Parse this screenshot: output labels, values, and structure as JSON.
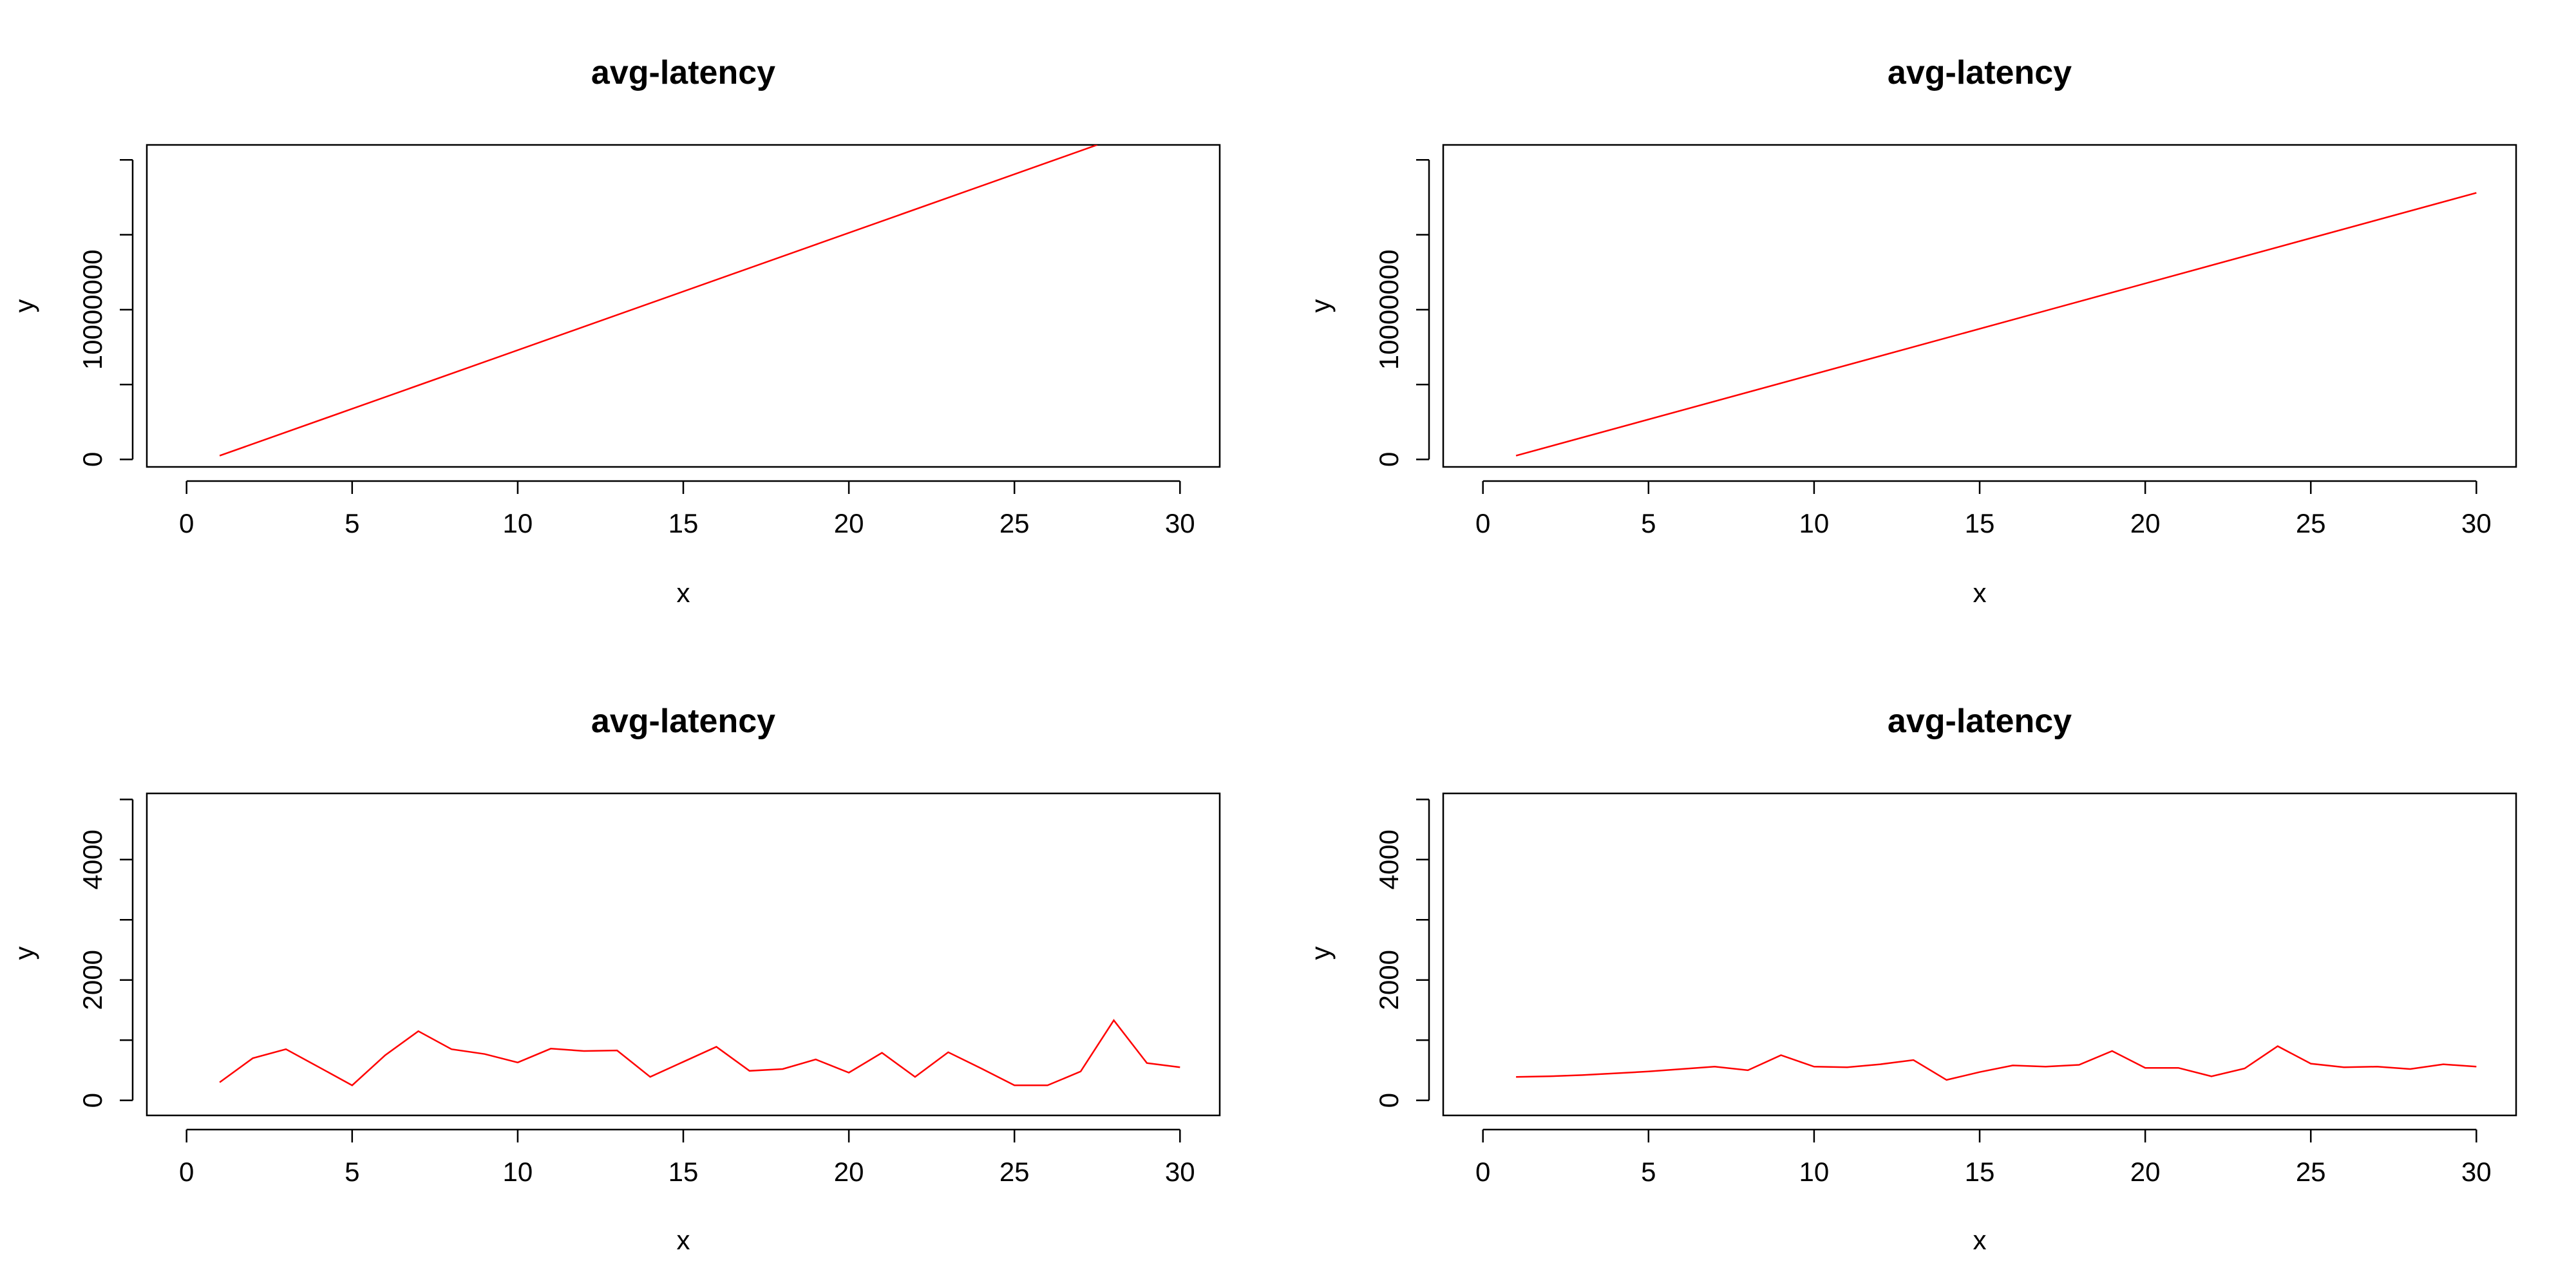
{
  "chart_data": [
    {
      "type": "line",
      "title": "avg-latency",
      "xlabel": "x",
      "ylabel": "y",
      "xlim": [
        0,
        30
      ],
      "ylim": [
        -500000,
        21000000
      ],
      "x_ticks": [
        0,
        5,
        10,
        15,
        20,
        25,
        30
      ],
      "y_ticks": [
        0,
        5000000,
        10000000,
        15000000,
        20000000
      ],
      "y_tick_labels": [
        "0",
        "",
        "10000000",
        "",
        ""
      ],
      "grid": false,
      "line_color": "#ff0000",
      "series": [
        {
          "x": [
            1,
            27.5
          ],
          "y": [
            250000,
            21000000
          ]
        }
      ]
    },
    {
      "type": "line",
      "title": "avg-latency",
      "xlabel": "x",
      "ylabel": "y",
      "xlim": [
        0,
        30
      ],
      "ylim": [
        -500000,
        21000000
      ],
      "x_ticks": [
        0,
        5,
        10,
        15,
        20,
        25,
        30
      ],
      "y_ticks": [
        0,
        5000000,
        10000000,
        15000000,
        20000000
      ],
      "y_tick_labels": [
        "0",
        "",
        "10000000",
        "",
        ""
      ],
      "grid": false,
      "line_color": "#ff0000",
      "series": [
        {
          "x": [
            1,
            30
          ],
          "y": [
            250000,
            17800000
          ]
        }
      ]
    },
    {
      "type": "line",
      "title": "avg-latency",
      "xlabel": "x",
      "ylabel": "y",
      "xlim": [
        0,
        30
      ],
      "ylim": [
        -250,
        5100
      ],
      "x_ticks": [
        0,
        5,
        10,
        15,
        20,
        25,
        30
      ],
      "y_ticks": [
        0,
        1000,
        2000,
        3000,
        4000,
        5000
      ],
      "y_tick_labels": [
        "0",
        "",
        "2000",
        "",
        "4000",
        ""
      ],
      "grid": false,
      "line_color": "#ff0000",
      "series": [
        {
          "x": [
            1,
            2,
            3,
            4,
            5,
            6,
            7,
            8,
            9,
            10,
            11,
            12,
            13,
            14,
            15,
            16,
            17,
            18,
            19,
            20,
            21,
            22,
            23,
            24,
            25,
            26,
            27,
            28,
            29,
            30
          ],
          "y": [
            300,
            700,
            850,
            550,
            250,
            750,
            1150,
            850,
            770,
            630,
            860,
            820,
            830,
            390,
            640,
            890,
            490,
            520,
            680,
            460,
            790,
            390,
            800,
            530,
            250,
            250,
            480,
            1330,
            620,
            550
          ]
        }
      ]
    },
    {
      "type": "line",
      "title": "avg-latency",
      "xlabel": "x",
      "ylabel": "y",
      "xlim": [
        0,
        30
      ],
      "ylim": [
        -250,
        5100
      ],
      "x_ticks": [
        0,
        5,
        10,
        15,
        20,
        25,
        30
      ],
      "y_ticks": [
        0,
        1000,
        2000,
        3000,
        4000,
        5000
      ],
      "y_tick_labels": [
        "0",
        "",
        "2000",
        "",
        "4000",
        ""
      ],
      "grid": false,
      "line_color": "#ff0000",
      "series": [
        {
          "x": [
            1,
            2,
            3,
            4,
            5,
            6,
            7,
            8,
            9,
            10,
            11,
            12,
            13,
            14,
            15,
            16,
            17,
            18,
            19,
            20,
            21,
            22,
            23,
            24,
            25,
            26,
            27,
            28,
            29,
            30
          ],
          "y": [
            390,
            400,
            420,
            450,
            480,
            520,
            560,
            500,
            750,
            560,
            550,
            600,
            670,
            340,
            470,
            580,
            560,
            590,
            820,
            540,
            540,
            400,
            530,
            900,
            610,
            550,
            560,
            520,
            600,
            560
          ]
        }
      ]
    }
  ]
}
